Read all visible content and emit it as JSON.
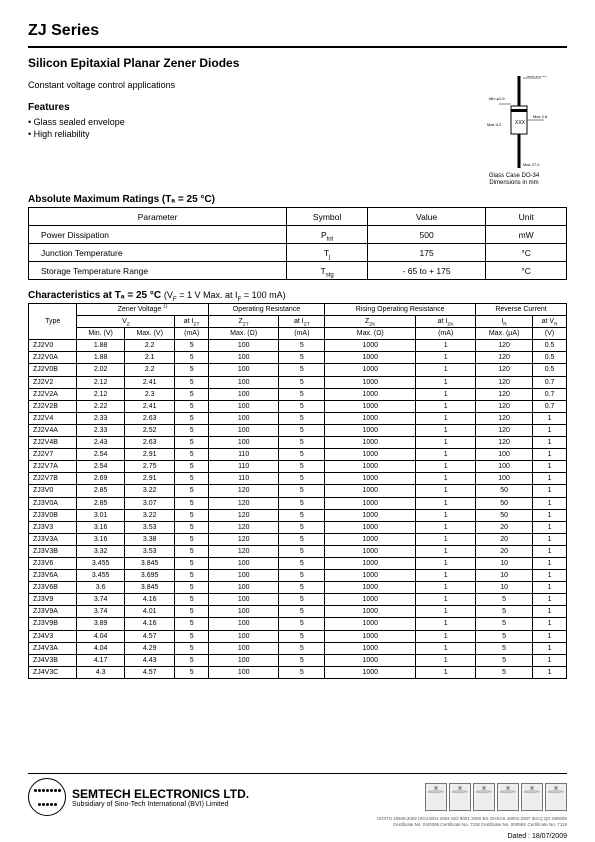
{
  "page_title": "ZJ Series",
  "subtitle": "Silicon Epitaxial Planar Zener Diodes",
  "description": "Constant voltage control applications",
  "features_title": "Features",
  "features": [
    "Glass sealed envelope",
    "High reliability"
  ],
  "package_caption1": "Glass Case DO-34",
  "package_caption2": "Dimensions in mm",
  "ratings_title": "Absolute Maximum Ratings (Tₐ = 25 °C)",
  "ratings_headers": {
    "param": "Parameter",
    "symbol": "Symbol",
    "value": "Value",
    "unit": "Unit"
  },
  "ratings_rows": [
    {
      "param": "Power Dissipation",
      "symbol": "P_tot",
      "value": "500",
      "unit": "mW"
    },
    {
      "param": "Junction Temperature",
      "symbol": "T_j",
      "value": "175",
      "unit": "°C"
    },
    {
      "param": "Storage Temperature Range",
      "symbol": "T_stg",
      "value": "- 65 to + 175",
      "unit": "°C"
    }
  ],
  "char_title_prefix": "Characteristics at Tₐ = 25 °C",
  "char_title_suffix": "(V_F = 1 V Max. at I_F = 100 mA)",
  "char_group_headers": {
    "type": "Type",
    "zener": "Zener Voltage",
    "op_res": "Operating Resistance",
    "rising_res": "Rising Operating Resistance",
    "rev_curr": "Reverse Current"
  },
  "char_sub1": {
    "vz": "V_Z",
    "at_izt": "at I_ZT",
    "zzt": "Z_ZT",
    "at_izt2": "at I_ZT",
    "zzk": "Z_ZK",
    "at_izk": "at I_ZK",
    "ir": "I_R",
    "at_vr": "at V_R"
  },
  "char_sub2": {
    "min": "Min. (V)",
    "max": "Max. (V)",
    "ma": "(mA)",
    "max_ohm": "Max. (Ω)",
    "ma2": "(mA)",
    "max_ohm2": "Max. (Ω)",
    "ma3": "(mA)",
    "max_ua": "Max. (µA)",
    "v": "(V)"
  },
  "char_rows": [
    [
      "ZJ2V0",
      "1.88",
      "2.2",
      "5",
      "100",
      "5",
      "1000",
      "1",
      "120",
      "0.5"
    ],
    [
      "ZJ2V0A",
      "1.88",
      "2.1",
      "5",
      "100",
      "5",
      "1000",
      "1",
      "120",
      "0.5"
    ],
    [
      "ZJ2V0B",
      "2.02",
      "2.2",
      "5",
      "100",
      "5",
      "1000",
      "1",
      "120",
      "0.5"
    ],
    [
      "ZJ2V2",
      "2.12",
      "2.41",
      "5",
      "100",
      "5",
      "1000",
      "1",
      "120",
      "0.7"
    ],
    [
      "ZJ2V2A",
      "2.12",
      "2.3",
      "5",
      "100",
      "5",
      "1000",
      "1",
      "120",
      "0.7"
    ],
    [
      "ZJ2V2B",
      "2.22",
      "2.41",
      "5",
      "100",
      "5",
      "1000",
      "1",
      "120",
      "0.7"
    ],
    [
      "ZJ2V4",
      "2.33",
      "2.63",
      "5",
      "100",
      "5",
      "1000",
      "1",
      "120",
      "1"
    ],
    [
      "ZJ2V4A",
      "2.33",
      "2.52",
      "5",
      "100",
      "5",
      "1000",
      "1",
      "120",
      "1"
    ],
    [
      "ZJ2V4B",
      "2.43",
      "2.63",
      "5",
      "100",
      "5",
      "1000",
      "1",
      "120",
      "1"
    ],
    [
      "ZJ2V7",
      "2.54",
      "2.91",
      "5",
      "110",
      "5",
      "1000",
      "1",
      "100",
      "1"
    ],
    [
      "ZJ2V7A",
      "2.54",
      "2.75",
      "5",
      "110",
      "5",
      "1000",
      "1",
      "100",
      "1"
    ],
    [
      "ZJ2V7B",
      "2.69",
      "2.91",
      "5",
      "110",
      "5",
      "1000",
      "1",
      "100",
      "1"
    ],
    [
      "ZJ3V0",
      "2.85",
      "3.22",
      "5",
      "120",
      "5",
      "1000",
      "1",
      "50",
      "1"
    ],
    [
      "ZJ3V0A",
      "2.85",
      "3.07",
      "5",
      "120",
      "5",
      "1000",
      "1",
      "50",
      "1"
    ],
    [
      "ZJ3V0B",
      "3.01",
      "3.22",
      "5",
      "120",
      "5",
      "1000",
      "1",
      "50",
      "1"
    ],
    [
      "ZJ3V3",
      "3.16",
      "3.53",
      "5",
      "120",
      "5",
      "1000",
      "1",
      "20",
      "1"
    ],
    [
      "ZJ3V3A",
      "3.16",
      "3.38",
      "5",
      "120",
      "5",
      "1000",
      "1",
      "20",
      "1"
    ],
    [
      "ZJ3V3B",
      "3.32",
      "3.53",
      "5",
      "120",
      "5",
      "1000",
      "1",
      "20",
      "1"
    ],
    [
      "ZJ3V6",
      "3.455",
      "3.845",
      "5",
      "100",
      "5",
      "1000",
      "1",
      "10",
      "1"
    ],
    [
      "ZJ3V6A",
      "3.455",
      "3.695",
      "5",
      "100",
      "5",
      "1000",
      "1",
      "10",
      "1"
    ],
    [
      "ZJ3V6B",
      "3.6",
      "3.845",
      "5",
      "100",
      "5",
      "1000",
      "1",
      "10",
      "1"
    ],
    [
      "ZJ3V9",
      "3.74",
      "4.16",
      "5",
      "100",
      "5",
      "1000",
      "1",
      "5",
      "1"
    ],
    [
      "ZJ3V9A",
      "3.74",
      "4.01",
      "5",
      "100",
      "5",
      "1000",
      "1",
      "5",
      "1"
    ],
    [
      "ZJ3V9B",
      "3.89",
      "4.16",
      "5",
      "100",
      "5",
      "1000",
      "1",
      "5",
      "1"
    ],
    [
      "ZJ4V3",
      "4.04",
      "4.57",
      "5",
      "100",
      "5",
      "1000",
      "1",
      "5",
      "1"
    ],
    [
      "ZJ4V3A",
      "4.04",
      "4.29",
      "5",
      "100",
      "5",
      "1000",
      "1",
      "5",
      "1"
    ],
    [
      "ZJ4V3B",
      "4.17",
      "4.43",
      "5",
      "100",
      "5",
      "1000",
      "1",
      "5",
      "1"
    ],
    [
      "ZJ4V3C",
      "4.3",
      "4.57",
      "5",
      "100",
      "5",
      "1000",
      "1",
      "5",
      "1"
    ]
  ],
  "company_name": "SEMTECH ELECTRONICS LTD.",
  "company_sub": "Subsidiary of Sino-Tech International (BVI) Limited",
  "cert_labels": [
    "MOODY",
    "MOODY",
    "MOODY",
    "MOODY",
    "MOODY",
    "MOODY"
  ],
  "cert_sub1": "ISO/TS 16949:2002   ISO14001:2004   ISO 9001:2000   BS OHSAS 18001:2007   IECQ QC 080000",
  "cert_sub2": "Certificate No. 04/0295   Certificate No. 7118   Certificate No. 00096S   Certificate No. 7119",
  "dated": "Dated : 18/07/2009",
  "colors": {
    "text": "#000000",
    "bg": "#ffffff",
    "border": "#000000"
  }
}
